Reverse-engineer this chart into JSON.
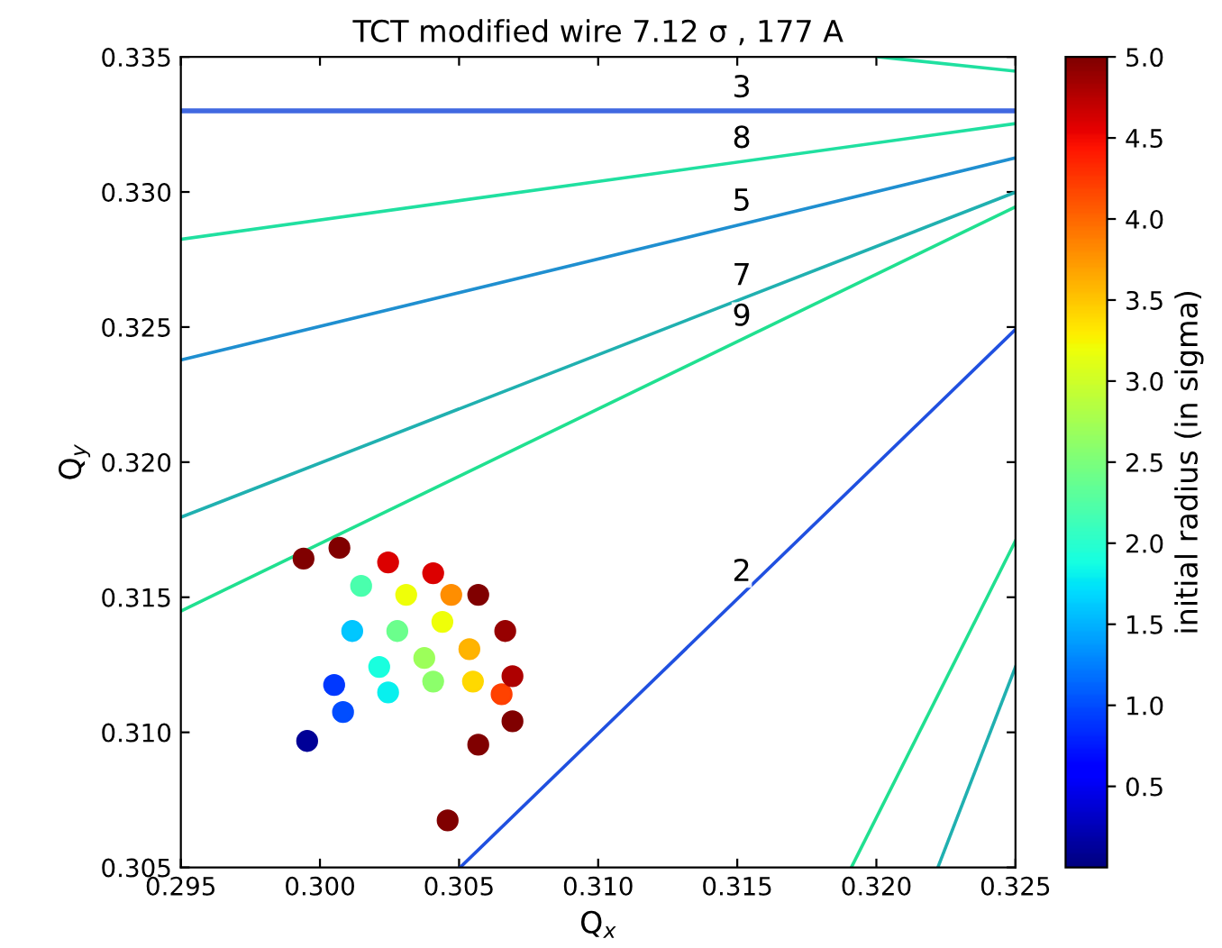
{
  "chart_data": {
    "type": "scatter",
    "title": "TCT modified wire 7.12 σ , 177 A",
    "xlabel": "Q$_{x}$",
    "ylabel": "Q$_{y}$",
    "clabel": "initial radius (in sigma)",
    "xlim": [
      0.295,
      0.325
    ],
    "ylim": [
      0.305,
      0.335
    ],
    "xticks": [
      {
        "value": 0.295,
        "label": "0.295"
      },
      {
        "value": 0.3,
        "label": "0.300"
      },
      {
        "value": 0.305,
        "label": "0.305"
      },
      {
        "value": 0.31,
        "label": "0.310"
      },
      {
        "value": 0.315,
        "label": "0.315"
      },
      {
        "value": 0.32,
        "label": "0.320"
      },
      {
        "value": 0.325,
        "label": "0.325"
      }
    ],
    "yticks": [
      {
        "value": 0.305,
        "label": "0.305"
      },
      {
        "value": 0.31,
        "label": "0.310"
      },
      {
        "value": 0.315,
        "label": "0.315"
      },
      {
        "value": 0.32,
        "label": "0.320"
      },
      {
        "value": 0.325,
        "label": "0.325"
      },
      {
        "value": 0.33,
        "label": "0.330"
      },
      {
        "value": 0.335,
        "label": "0.335"
      }
    ],
    "clim": [
      0,
      5
    ],
    "cticks": [
      {
        "value": 0.5,
        "label": "0.5"
      },
      {
        "value": 1,
        "label": "1.0"
      },
      {
        "value": 1.5,
        "label": "1.5"
      },
      {
        "value": 2,
        "label": "2.0"
      },
      {
        "value": 2.5,
        "label": "2.5"
      },
      {
        "value": 3,
        "label": "3.0"
      },
      {
        "value": 3.5,
        "label": "3.5"
      },
      {
        "value": 4,
        "label": "4.0"
      },
      {
        "value": 4.5,
        "label": "4.5"
      },
      {
        "value": 5,
        "label": "5.0"
      }
    ],
    "grid": false,
    "legend": false,
    "series": [
      {
        "type": "line",
        "name": "3",
        "color": "#4169e1",
        "x": [
          0.295,
          0.325
        ],
        "values": [
          0.333,
          0.333
        ]
      },
      {
        "type": "line",
        "name": "8",
        "color": "#20e0a0",
        "x": [
          0.295,
          0.325
        ],
        "values": [
          0.32825,
          0.33253
        ]
      },
      {
        "type": "line",
        "name": "5",
        "color": "#1f8fd0",
        "x": [
          0.295,
          0.325
        ],
        "values": [
          0.32378,
          0.33126
        ]
      },
      {
        "type": "line",
        "name": "7",
        "color": "#20b0b0",
        "x": [
          0.295,
          0.325
        ],
        "values": [
          0.31796,
          0.32999
        ]
      },
      {
        "type": "line",
        "name": "9",
        "color": "#20e090",
        "x": [
          0.295,
          0.325
        ],
        "values": [
          0.31449,
          0.32945
        ]
      },
      {
        "type": "line",
        "name": "2",
        "color": "#2050e0",
        "x": [
          0.30504,
          0.325
        ],
        "values": [
          0.305,
          0.32491
        ]
      },
      {
        "type": "line",
        "color": "#20e0a0",
        "x": [
          0.32008,
          0.325
        ],
        "values": [
          0.335,
          0.33447
        ]
      },
      {
        "type": "line",
        "color": "#20e090",
        "x": [
          0.3191,
          0.325
        ],
        "values": [
          0.305,
          0.31709
        ]
      },
      {
        "type": "line",
        "color": "#20b0b0",
        "x": [
          0.32221,
          0.325
        ],
        "values": [
          0.305,
          0.31242
        ]
      },
      {
        "x": [
          0.29954,
          0.30083,
          0.30245,
          0.30407,
          0.3055,
          0.30653,
          0.30692,
          0.30569,
          0.30051,
          0.30116,
          0.30148,
          0.29941,
          0.3007,
          0.30245,
          0.30407,
          0.30569,
          0.30666,
          0.30692,
          0.30278,
          0.3044,
          0.30375,
          0.30213,
          0.30537,
          0.3031,
          0.30472,
          0.30459
        ],
        "values": [
          0.30968,
          0.31075,
          0.31148,
          0.31188,
          0.31188,
          0.31141,
          0.31041,
          0.30954,
          0.31175,
          0.31375,
          0.31542,
          0.31643,
          0.31683,
          0.31629,
          0.31589,
          0.31509,
          0.31375,
          0.31208,
          0.31375,
          0.31409,
          0.31275,
          0.31242,
          0.31308,
          0.31509,
          0.31509,
          0.30674
        ],
        "colors": [
          "#000097",
          "#004dff",
          "#08f0ee",
          "#8cff6b",
          "#ffd900",
          "#ff4200",
          "#800000",
          "#800000",
          "#0038ff",
          "#00c7ff",
          "#4affad",
          "#800000",
          "#800000",
          "#dc0000",
          "#dc0000",
          "#800000",
          "#970000",
          "#ae0000",
          "#6bff8c",
          "#efff08",
          "#9cff5a",
          "#19ffde",
          "#ffb400",
          "#efff08",
          "#ff8e00",
          "#800000"
        ],
        "cvalues": [
          0.1,
          1.0,
          1.8,
          2.6,
          3.4,
          4.2,
          5,
          5,
          0.9,
          1.6,
          2.2,
          5,
          5,
          4.6,
          4.6,
          5,
          4.9,
          4.8,
          2.4,
          3.2,
          2.7,
          1.9,
          3.6,
          3.2,
          3.8,
          5
        ]
      }
    ]
  }
}
